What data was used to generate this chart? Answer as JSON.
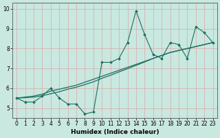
{
  "xlabel": "Humidex (Indice chaleur)",
  "ylabel": "",
  "background_color": "#c8e8e0",
  "grid_color_v": "#dba8a8",
  "grid_color_h": "#c8e0d8",
  "line_color": "#1a6e5e",
  "xlim": [
    -0.5,
    23.5
  ],
  "ylim": [
    4.5,
    10.3
  ],
  "x_ticks": [
    0,
    1,
    2,
    3,
    4,
    5,
    6,
    7,
    8,
    9,
    10,
    11,
    12,
    13,
    14,
    15,
    16,
    17,
    18,
    19,
    20,
    21,
    22,
    23
  ],
  "y_ticks": [
    5,
    6,
    7,
    8,
    9,
    10
  ],
  "jagged_series": [
    5.5,
    5.3,
    5.3,
    5.6,
    6.0,
    5.5,
    5.2,
    5.2,
    4.7,
    4.8,
    7.3,
    7.3,
    7.5,
    8.3,
    9.9,
    8.7,
    7.7,
    7.5,
    8.3,
    8.2,
    7.5,
    9.1,
    8.8,
    8.3
  ],
  "smooth_series1": [
    5.5,
    5.55,
    5.6,
    5.7,
    5.85,
    5.95,
    6.05,
    6.15,
    6.3,
    6.45,
    6.6,
    6.75,
    6.9,
    7.05,
    7.2,
    7.35,
    7.5,
    7.65,
    7.8,
    7.9,
    8.0,
    8.1,
    8.2,
    8.3
  ],
  "smooth_series2": [
    5.5,
    5.52,
    5.55,
    5.62,
    5.72,
    5.82,
    5.95,
    6.05,
    6.18,
    6.32,
    6.5,
    6.65,
    6.82,
    6.98,
    7.15,
    7.32,
    7.5,
    7.65,
    7.8,
    7.9,
    8.0,
    8.1,
    8.2,
    8.3
  ]
}
